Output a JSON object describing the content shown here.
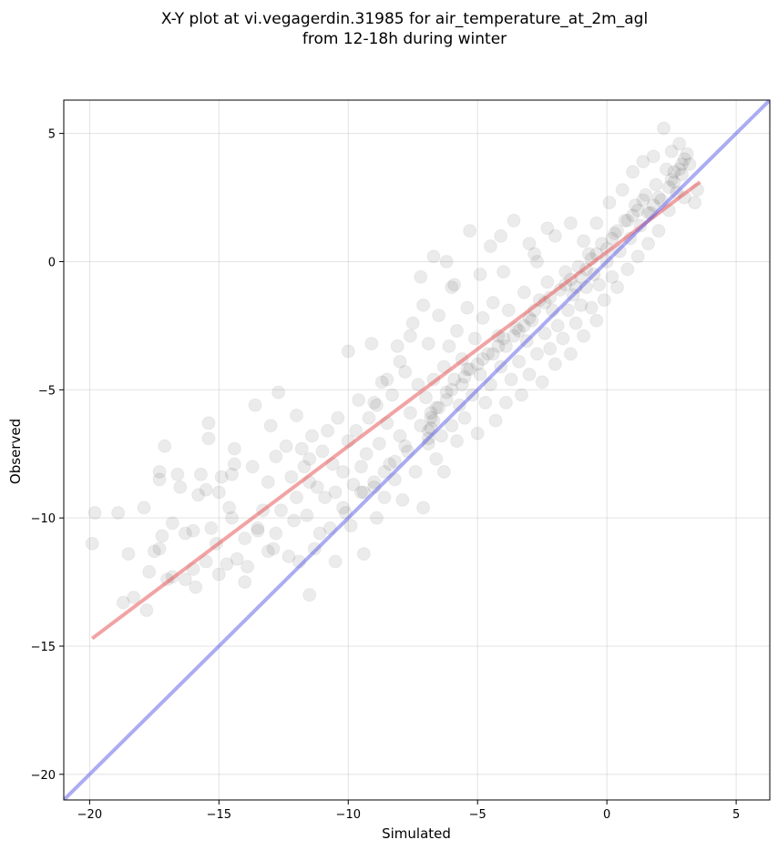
{
  "chart_data": {
    "type": "scatter",
    "title_lines": [
      "X-Y plot at vi.vegagerdin.31985 for air_temperature_at_2m_agl",
      "from 12-18h during winter"
    ],
    "xlabel": "Simulated",
    "ylabel": "Observed",
    "xlim": [
      -21.0,
      6.3
    ],
    "ylim": [
      -21.0,
      6.3
    ],
    "xticks": [
      -20,
      -15,
      -10,
      -5,
      0,
      5
    ],
    "yticks": [
      -20,
      -15,
      -10,
      -5,
      0,
      5
    ],
    "xtick_labels": [
      "−20",
      "−15",
      "−10",
      "−5",
      "0",
      "5"
    ],
    "ytick_labels": [
      "−20",
      "−15",
      "−10",
      "−5",
      "0",
      "5"
    ],
    "grid": true,
    "point_color": "#000000",
    "point_alpha": 0.08,
    "series": [
      {
        "values_xy": [
          [
            -19.9,
            -11.0
          ],
          [
            -19.8,
            -9.8
          ],
          [
            -18.9,
            -9.8
          ],
          [
            -18.5,
            -11.4
          ],
          [
            -18.7,
            -13.3
          ],
          [
            -18.3,
            -13.1
          ],
          [
            -17.9,
            -9.6
          ],
          [
            -17.8,
            -13.6
          ],
          [
            -17.7,
            -12.1
          ],
          [
            -17.5,
            -11.3
          ],
          [
            -17.3,
            -11.2
          ],
          [
            -17.2,
            -10.7
          ],
          [
            -17.1,
            -7.2
          ],
          [
            -17.3,
            -8.2
          ],
          [
            -17.3,
            -8.5
          ],
          [
            -16.8,
            -12.3
          ],
          [
            -16.8,
            -10.2
          ],
          [
            -16.6,
            -8.3
          ],
          [
            -16.5,
            -8.8
          ],
          [
            -16.3,
            -10.6
          ],
          [
            -16.3,
            -12.4
          ],
          [
            -16.0,
            -10.5
          ],
          [
            -15.9,
            -12.7
          ],
          [
            -15.8,
            -9.1
          ],
          [
            -15.7,
            -8.3
          ],
          [
            -15.5,
            -8.9
          ],
          [
            -15.5,
            -11.7
          ],
          [
            -15.4,
            -6.3
          ],
          [
            -15.4,
            -6.9
          ],
          [
            -15.3,
            -10.4
          ],
          [
            -15.1,
            -11.0
          ],
          [
            -15.0,
            -9.0
          ],
          [
            -14.9,
            -8.4
          ],
          [
            -14.7,
            -11.8
          ],
          [
            -14.6,
            -9.6
          ],
          [
            -14.5,
            -8.3
          ],
          [
            -14.4,
            -7.3
          ],
          [
            -14.4,
            -7.9
          ],
          [
            -14.3,
            -11.6
          ],
          [
            -14.0,
            -12.5
          ],
          [
            -14.0,
            -10.8
          ],
          [
            -13.9,
            -11.9
          ],
          [
            -13.7,
            -8.0
          ],
          [
            -13.6,
            -5.6
          ],
          [
            -13.5,
            -10.4
          ],
          [
            -13.3,
            -9.7
          ],
          [
            -13.1,
            -8.6
          ],
          [
            -13.1,
            -11.3
          ],
          [
            -13.0,
            -6.4
          ],
          [
            -12.9,
            -11.2
          ],
          [
            -12.8,
            -10.6
          ],
          [
            -12.8,
            -7.6
          ],
          [
            -12.7,
            -5.1
          ],
          [
            -12.6,
            -9.7
          ],
          [
            -12.4,
            -7.2
          ],
          [
            -12.3,
            -11.5
          ],
          [
            -12.2,
            -8.4
          ],
          [
            -12.1,
            -10.1
          ],
          [
            -12.0,
            -6.0
          ],
          [
            -11.9,
            -11.7
          ],
          [
            -11.8,
            -7.3
          ],
          [
            -11.7,
            -8.0
          ],
          [
            -11.6,
            -9.9
          ],
          [
            -11.5,
            -7.7
          ],
          [
            -11.5,
            -13.0
          ],
          [
            -11.4,
            -6.8
          ],
          [
            -11.3,
            -11.2
          ],
          [
            -11.2,
            -8.8
          ],
          [
            -11.1,
            -10.6
          ],
          [
            -11.0,
            -7.4
          ],
          [
            -10.9,
            -9.2
          ],
          [
            -10.8,
            -6.6
          ],
          [
            -10.7,
            -10.4
          ],
          [
            -10.6,
            -7.9
          ],
          [
            -10.5,
            -11.7
          ],
          [
            -10.5,
            -9.0
          ],
          [
            -10.4,
            -6.1
          ],
          [
            -10.2,
            -8.2
          ],
          [
            -10.1,
            -9.8
          ],
          [
            -10.0,
            -7.0
          ],
          [
            -10.0,
            -3.5
          ],
          [
            -9.9,
            -10.3
          ],
          [
            -9.8,
            -8.7
          ],
          [
            -9.7,
            -6.6
          ],
          [
            -9.6,
            -5.4
          ],
          [
            -9.5,
            -8.0
          ],
          [
            -9.4,
            -11.4
          ],
          [
            -9.4,
            -9.0
          ],
          [
            -9.3,
            -7.5
          ],
          [
            -9.2,
            -6.1
          ],
          [
            -9.1,
            -3.2
          ],
          [
            -9.0,
            -8.6
          ],
          [
            -8.9,
            -5.6
          ],
          [
            -8.9,
            -10.0
          ],
          [
            -8.8,
            -7.1
          ],
          [
            -8.7,
            -4.7
          ],
          [
            -8.6,
            -9.2
          ],
          [
            -8.5,
            -6.3
          ],
          [
            -8.4,
            -7.9
          ],
          [
            -8.3,
            -5.2
          ],
          [
            -8.2,
            -8.5
          ],
          [
            -8.1,
            -3.3
          ],
          [
            -8.0,
            -6.8
          ],
          [
            -7.9,
            -9.3
          ],
          [
            -7.8,
            -4.3
          ],
          [
            -7.7,
            -7.4
          ],
          [
            -7.6,
            -5.9
          ],
          [
            -7.5,
            -2.4
          ],
          [
            -7.4,
            -8.2
          ],
          [
            -7.3,
            -4.8
          ],
          [
            -7.2,
            -6.4
          ],
          [
            -7.1,
            -1.7
          ],
          [
            -7.1,
            -9.6
          ],
          [
            -7.0,
            -5.3
          ],
          [
            -6.9,
            -7.1
          ],
          [
            -6.9,
            -3.2
          ],
          [
            -6.8,
            -6.1
          ],
          [
            -6.7,
            -4.6
          ],
          [
            -6.7,
            0.2
          ],
          [
            -6.6,
            -7.7
          ],
          [
            -6.5,
            -5.7
          ],
          [
            -6.5,
            -2.1
          ],
          [
            -6.4,
            -6.8
          ],
          [
            -6.3,
            -4.1
          ],
          [
            -6.3,
            -8.2
          ],
          [
            -6.2,
            -5.1
          ],
          [
            -6.1,
            -3.3
          ],
          [
            -6.0,
            -6.4
          ],
          [
            -6.0,
            -1.0
          ],
          [
            -5.9,
            -4.6
          ],
          [
            -5.8,
            -7.0
          ],
          [
            -5.8,
            -2.7
          ],
          [
            -5.7,
            -5.6
          ],
          [
            -5.6,
            -3.8
          ],
          [
            -5.5,
            -6.1
          ],
          [
            -5.4,
            -1.8
          ],
          [
            -5.4,
            -4.2
          ],
          [
            -5.3,
            1.2
          ],
          [
            -5.2,
            -5.2
          ],
          [
            -5.1,
            -3.0
          ],
          [
            -5.0,
            -6.7
          ],
          [
            -4.9,
            -4.4
          ],
          [
            -4.9,
            -0.5
          ],
          [
            -4.8,
            -2.2
          ],
          [
            -4.7,
            -5.5
          ],
          [
            -4.6,
            -3.6
          ],
          [
            -4.5,
            -4.8
          ],
          [
            -4.4,
            -1.6
          ],
          [
            -4.3,
            -6.2
          ],
          [
            -4.2,
            -2.9
          ],
          [
            -4.1,
            -4.1
          ],
          [
            -4.0,
            -0.4
          ],
          [
            -3.9,
            -5.5
          ],
          [
            -3.9,
            -3.3
          ],
          [
            -3.8,
            -1.9
          ],
          [
            -3.7,
            -4.6
          ],
          [
            -3.6,
            1.6
          ],
          [
            -3.5,
            -2.6
          ],
          [
            -3.4,
            -3.9
          ],
          [
            -3.3,
            -5.2
          ],
          [
            -3.2,
            -1.2
          ],
          [
            -3.1,
            -3.1
          ],
          [
            -3.0,
            -4.4
          ],
          [
            -2.9,
            -2.3
          ],
          [
            -2.8,
            0.3
          ],
          [
            -2.7,
            -3.6
          ],
          [
            -2.6,
            -1.5
          ],
          [
            -2.5,
            -4.7
          ],
          [
            -2.4,
            -2.8
          ],
          [
            -2.3,
            -0.8
          ],
          [
            -2.2,
            -3.4
          ],
          [
            -2.1,
            -1.9
          ],
          [
            -2.0,
            1.0
          ],
          [
            -2.0,
            -4.0
          ],
          [
            -1.9,
            -2.5
          ],
          [
            -1.8,
            -1.1
          ],
          [
            -1.7,
            -3.0
          ],
          [
            -1.6,
            -0.4
          ],
          [
            -1.5,
            -1.9
          ],
          [
            -1.4,
            1.5
          ],
          [
            -1.4,
            -3.6
          ],
          [
            -1.3,
            -1.3
          ],
          [
            -1.2,
            -2.4
          ],
          [
            -1.1,
            -0.2
          ],
          [
            -1.0,
            -1.7
          ],
          [
            -0.9,
            0.8
          ],
          [
            -0.9,
            -2.9
          ],
          [
            -0.8,
            -1.0
          ],
          [
            -0.7,
            0.3
          ],
          [
            -0.6,
            -1.8
          ],
          [
            -0.5,
            -0.5
          ],
          [
            -0.4,
            1.5
          ],
          [
            -0.4,
            -2.3
          ],
          [
            -0.3,
            -0.9
          ],
          [
            -0.2,
            0.7
          ],
          [
            -0.1,
            -1.5
          ],
          [
            0.0,
            0.0
          ],
          [
            0.1,
            2.3
          ],
          [
            0.2,
            -0.6
          ],
          [
            0.3,
            1.1
          ],
          [
            0.4,
            -1.0
          ],
          [
            0.5,
            0.4
          ],
          [
            0.6,
            2.8
          ],
          [
            0.7,
            1.6
          ],
          [
            0.8,
            -0.3
          ],
          [
            0.9,
            0.9
          ],
          [
            1.0,
            3.5
          ],
          [
            1.1,
            2.2
          ],
          [
            1.2,
            0.2
          ],
          [
            1.3,
            1.4
          ],
          [
            1.4,
            3.9
          ],
          [
            1.5,
            2.6
          ],
          [
            1.6,
            0.7
          ],
          [
            1.7,
            1.9
          ],
          [
            1.8,
            4.1
          ],
          [
            1.9,
            3.0
          ],
          [
            2.0,
            1.2
          ],
          [
            2.1,
            2.4
          ],
          [
            2.2,
            5.2
          ],
          [
            2.3,
            3.6
          ],
          [
            2.4,
            2.0
          ],
          [
            2.5,
            4.3
          ],
          [
            2.6,
            3.1
          ],
          [
            2.7,
            2.7
          ],
          [
            2.8,
            4.6
          ],
          [
            2.9,
            3.4
          ],
          [
            3.0,
            2.5
          ],
          [
            3.1,
            4.2
          ],
          [
            3.2,
            3.8
          ],
          [
            3.4,
            2.3
          ],
          [
            3.5,
            2.8
          ],
          [
            -6.9,
            -6.9
          ],
          [
            -6.8,
            -6.5
          ],
          [
            -6.7,
            -6.2
          ],
          [
            -6.8,
            -5.9
          ],
          [
            -6.9,
            -6.6
          ],
          [
            -6.6,
            -5.7
          ],
          [
            -5.5,
            -4.5
          ],
          [
            -5.3,
            -4.2
          ],
          [
            -5.6,
            -4.8
          ],
          [
            -4.2,
            -3.3
          ],
          [
            -4.0,
            -3.0
          ],
          [
            -4.4,
            -3.6
          ],
          [
            -3.0,
            -2.2
          ],
          [
            -2.8,
            -1.9
          ],
          [
            -3.2,
            -2.5
          ],
          [
            -1.0,
            -0.6
          ],
          [
            -0.8,
            -0.3
          ],
          [
            -1.2,
            -1.0
          ],
          [
            0.2,
            0.9
          ],
          [
            0.4,
            1.2
          ],
          [
            0.0,
            0.5
          ],
          [
            1.8,
            2.2
          ],
          [
            2.0,
            2.5
          ],
          [
            1.6,
            1.9
          ],
          [
            2.5,
            3.2
          ],
          [
            2.6,
            3.5
          ],
          [
            2.4,
            2.9
          ],
          [
            -7.8,
            -7.2
          ],
          [
            -8.2,
            -7.8
          ],
          [
            -8.6,
            -8.2
          ],
          [
            -9.0,
            -8.8
          ],
          [
            -9.5,
            -9.0
          ],
          [
            -10.2,
            -9.6
          ],
          [
            -6.0,
            -5.0
          ],
          [
            -6.2,
            -5.4
          ],
          [
            -5.0,
            -4.0
          ],
          [
            -4.8,
            -3.8
          ],
          [
            -3.6,
            -2.9
          ],
          [
            -3.4,
            -2.7
          ],
          [
            -2.4,
            -1.6
          ],
          [
            -2.2,
            -1.4
          ],
          [
            -1.6,
            -0.9
          ],
          [
            -1.4,
            -0.7
          ],
          [
            -0.6,
            0.1
          ],
          [
            -0.4,
            0.3
          ],
          [
            0.8,
            1.6
          ],
          [
            1.0,
            1.8
          ],
          [
            1.2,
            2.0
          ],
          [
            1.4,
            2.4
          ],
          [
            2.8,
            3.6
          ],
          [
            3.0,
            4.0
          ],
          [
            2.9,
            3.8
          ],
          [
            -12.0,
            -9.2
          ],
          [
            -11.5,
            -8.6
          ],
          [
            -13.5,
            -10.5
          ],
          [
            -14.5,
            -10.0
          ],
          [
            -16.0,
            -12.0
          ],
          [
            -15.0,
            -12.2
          ],
          [
            -17.0,
            -12.4
          ],
          [
            -9.0,
            -5.5
          ],
          [
            -8.5,
            -4.6
          ],
          [
            -8.0,
            -3.9
          ],
          [
            -7.6,
            -2.9
          ],
          [
            -7.2,
            -0.6
          ],
          [
            -6.2,
            0.0
          ],
          [
            -5.9,
            -0.9
          ],
          [
            -4.5,
            0.6
          ],
          [
            -4.1,
            1.0
          ],
          [
            -3.0,
            0.7
          ],
          [
            -2.3,
            1.3
          ],
          [
            -2.7,
            0.0
          ]
        ]
      }
    ],
    "lines": [
      {
        "name_hidden": "fit",
        "color": "#e8575a",
        "alpha": 0.55,
        "x": [
          -19.9,
          3.6
        ],
        "y": [
          -14.7,
          3.1
        ]
      },
      {
        "name_hidden": "identity",
        "color": "#5a5ae8",
        "alpha": 0.5,
        "x": [
          -21.0,
          6.3
        ],
        "y": [
          -21.0,
          6.3
        ]
      }
    ]
  }
}
